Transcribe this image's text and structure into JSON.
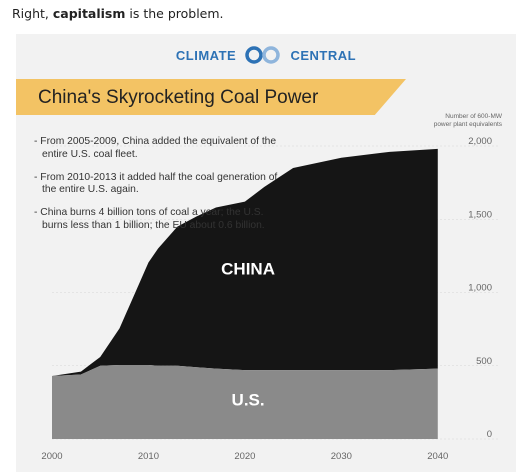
{
  "post": {
    "prefix": "Right, ",
    "bold": "capitalism",
    "suffix": " is the problem."
  },
  "brand": {
    "left": "CLIMATE",
    "right": "CENTRAL",
    "logo": "climate-central-logo-icon"
  },
  "title": "China's Skyrocketing Coal Power",
  "unit_label": [
    "Number of 600-MW",
    "power plant equivalents"
  ],
  "bullets": [
    "- From 2005-2009, China added the equivalent of the entire U.S. coal fleet.",
    "- From 2010-2013 it added half the coal generation of the entire U.S. again.",
    "- China burns 4 billion tons of coal a year; the U.S. burns less than 1 billion; the EU about 0.6 billion."
  ],
  "colors": {
    "banner": "#f3c364",
    "china": "#151515",
    "us": "#8a8a8a",
    "brand": "#2d72b5",
    "card": "#f2f2f2"
  },
  "chart_data": {
    "type": "area",
    "stacked": true,
    "x": [
      2000,
      2003,
      2004,
      2005,
      2007,
      2009,
      2010,
      2011,
      2013,
      2015,
      2017,
      2020,
      2022,
      2025,
      2030,
      2035,
      2040
    ],
    "series": [
      {
        "name": "U.S.",
        "values": [
          430,
          440,
          470,
          500,
          505,
          505,
          505,
          500,
          500,
          490,
          480,
          470,
          470,
          470,
          470,
          470,
          480
        ]
      },
      {
        "name": "China",
        "values": [
          0,
          20,
          40,
          60,
          250,
          550,
          700,
          800,
          950,
          1030,
          1100,
          1150,
          1250,
          1380,
          1450,
          1490,
          1500
        ]
      }
    ],
    "area_labels": {
      "china": "CHINA",
      "us": "U.S."
    },
    "x_ticks": [
      "2000",
      "2010",
      "2020",
      "2030",
      "2040"
    ],
    "y_ticks": [
      "0",
      "500",
      "1,000",
      "1,500",
      "2,000"
    ],
    "xlim": [
      2000,
      2045
    ],
    "ylim": [
      0,
      2000
    ],
    "grid": true
  }
}
